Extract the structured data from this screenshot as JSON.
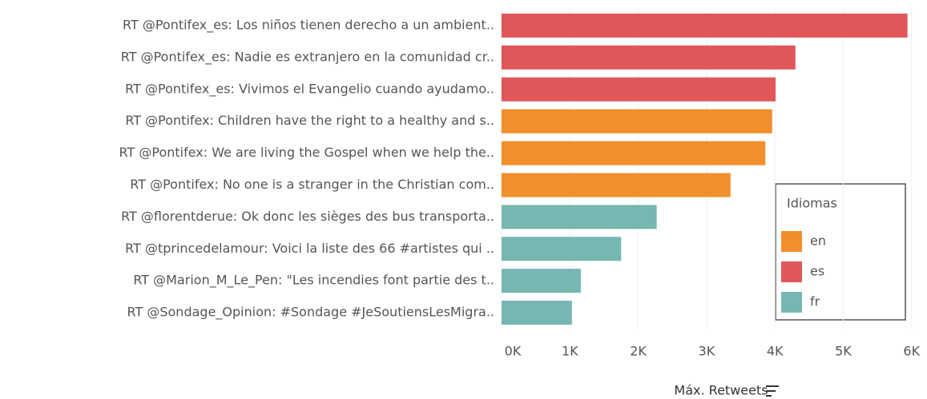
{
  "chart_data": {
    "type": "bar",
    "orientation": "horizontal",
    "categories": [
      "RT @Pontifex_es: Los niños tienen derecho a un ambient..",
      "RT @Pontifex_es: Nadie es extranjero en la comunidad cr..",
      "RT @Pontifex_es: Vivimos el Evangelio cuando ayudamo..",
      "RT @Pontifex: Children have the right to a healthy and s..",
      "RT @Pontifex: We are living the Gospel when we help the..",
      "RT @Pontifex: No one is a stranger in the Christian com..",
      "RT @florentderue: Ok donc les sièges des bus transporta..",
      "RT @tprincedelamour: Voici la liste des 66 #artistes qui ..",
      "RT @Marion_M_Le_Pen: \"Les incendies font partie des t..",
      "RT @Sondage_Opinion:  #Sondage #JeSoutiensLesMigra.."
    ],
    "values": [
      5940,
      4300,
      4010,
      3960,
      3860,
      3350,
      2270,
      1750,
      1160,
      1030
    ],
    "groups": [
      "es",
      "es",
      "es",
      "en",
      "en",
      "en",
      "fr",
      "fr",
      "fr",
      "fr"
    ],
    "xlabel": "Máx. Retweets",
    "xlim": [
      0,
      6120
    ],
    "xticks": [
      {
        "value": 0,
        "label": "0K"
      },
      {
        "value": 1000,
        "label": "1K"
      },
      {
        "value": 2000,
        "label": "2K"
      },
      {
        "value": 3000,
        "label": "3K"
      },
      {
        "value": 4000,
        "label": "4K"
      },
      {
        "value": 5000,
        "label": "5K"
      },
      {
        "value": 6000,
        "label": "6K"
      }
    ],
    "grid": true,
    "legend": {
      "title": "Idiomas",
      "position": "right",
      "items": [
        {
          "name": "en",
          "color": "#f28e2b"
        },
        {
          "name": "es",
          "color": "#e15759"
        },
        {
          "name": "fr",
          "color": "#76b7b2"
        }
      ]
    }
  }
}
